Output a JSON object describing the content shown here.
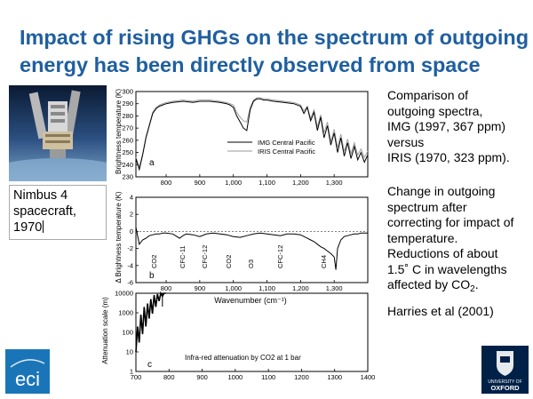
{
  "title": {
    "line1": "Impact of rising GHGs on the spectrum of outgoing",
    "line2": "energy has been directly observed from space"
  },
  "satellite_caption": {
    "line1": "Nimbus 4",
    "line2": "spacecraft,",
    "line3": "1970"
  },
  "comparison_text": {
    "line1": "Comparison of",
    "line2": "outgoing spectra,",
    "line3": "IMG (1997, 367 ppm)",
    "line4": "versus",
    "line5": "IRIS (1970, 323 ppm)."
  },
  "change_text": {
    "line1": "Change in outgoing",
    "line2": "spectrum after",
    "line3": "correcting for impact of",
    "line4": "temperature.",
    "line5": "Reductions of about",
    "line6": "1.5˚ C in wavelengths",
    "line7_prefix": "affected by CO",
    "line7_sub": "2",
    "line7_suffix": "."
  },
  "citation": "Harries et al (2001)",
  "logos": {
    "eci": "eci",
    "oxford_line1": "UNIVERSITY OF",
    "oxford_line2": "OXFORD"
  },
  "colors": {
    "title": "#1f5fa0",
    "eci_bg": "#1a75b8",
    "oxford_bg": "#002147"
  },
  "chart_data": [
    {
      "type": "line",
      "panel_label": "a",
      "ylabel": "Brightness temperature (K)",
      "xlim": [
        710,
        1400
      ],
      "ylim": [
        230,
        300
      ],
      "x_ticks": [
        "800",
        "900",
        "1,000",
        "1,100",
        "1,200",
        "1,300"
      ],
      "y_ticks": [
        "230",
        "240",
        "250",
        "260",
        "270",
        "280",
        "290",
        "300"
      ],
      "legend": [
        "IMG Central Pacific",
        "IRIS Central Pacific"
      ],
      "legend_position": "center-right",
      "series": [
        {
          "name": "IMG Central Pacific",
          "x": [
            710,
            720,
            730,
            740,
            750,
            760,
            770,
            780,
            790,
            800,
            820,
            850,
            880,
            900,
            930,
            960,
            980,
            990,
            1000,
            1010,
            1020,
            1030,
            1040,
            1050,
            1060,
            1070,
            1080,
            1090,
            1100,
            1120,
            1150,
            1180,
            1200,
            1210,
            1220,
            1230,
            1240,
            1250,
            1260,
            1270,
            1280,
            1290,
            1300,
            1310,
            1320,
            1330,
            1340,
            1350,
            1360,
            1370,
            1380,
            1390,
            1400
          ],
          "y": [
            245,
            236,
            248,
            262,
            272,
            282,
            286,
            288,
            289,
            290,
            291,
            292,
            291,
            292,
            292,
            291,
            290,
            289,
            287,
            280,
            275,
            270,
            268,
            285,
            292,
            294,
            294,
            293,
            293,
            292,
            291,
            290,
            288,
            282,
            287,
            276,
            283,
            268,
            279,
            262,
            272,
            256,
            266,
            250,
            262,
            247,
            258,
            245,
            255,
            244,
            250,
            242,
            248
          ]
        },
        {
          "name": "IRIS Central Pacific",
          "x": [
            710,
            720,
            730,
            740,
            750,
            760,
            770,
            780,
            790,
            800,
            820,
            850,
            880,
            900,
            930,
            960,
            980,
            990,
            1000,
            1010,
            1020,
            1030,
            1040,
            1050,
            1060,
            1070,
            1080,
            1090,
            1100,
            1120,
            1150,
            1180,
            1200,
            1210,
            1220,
            1230,
            1240,
            1250,
            1260,
            1270,
            1280,
            1290,
            1300,
            1310,
            1320,
            1330,
            1340,
            1350,
            1360,
            1370,
            1380,
            1390,
            1400
          ],
          "y": [
            246,
            238,
            249,
            263,
            273,
            283,
            287,
            289,
            290,
            291,
            292,
            293,
            292,
            293,
            293,
            292,
            291,
            290,
            289,
            283,
            279,
            276,
            275,
            287,
            293,
            295,
            295,
            294,
            294,
            293,
            292,
            291,
            289,
            284,
            288,
            278,
            285,
            271,
            281,
            266,
            275,
            259,
            269,
            254,
            265,
            251,
            261,
            249,
            258,
            248,
            253,
            246,
            251
          ]
        }
      ]
    },
    {
      "type": "line",
      "panel_label": "b",
      "ylabel": "Δ Brightness temperature (K)",
      "xlabel": "Wavenumber (cm⁻¹)",
      "xlim": [
        710,
        1400
      ],
      "ylim": [
        -6,
        4
      ],
      "x_ticks": [
        "800",
        "900",
        "1,000",
        "1,100",
        "1,200",
        "1,300"
      ],
      "y_ticks": [
        "4",
        "2",
        "0",
        "-2",
        "-4",
        "-6"
      ],
      "annotations": [
        "CO2",
        "CFC-11",
        "CFC-12",
        "CO2",
        "O3",
        "CFC-12",
        "CH4"
      ],
      "series": [
        {
          "name": "",
          "x": [
            710,
            720,
            730,
            740,
            750,
            760,
            770,
            780,
            790,
            800,
            820,
            840,
            850,
            860,
            880,
            900,
            920,
            940,
            960,
            980,
            1000,
            1020,
            1040,
            1060,
            1080,
            1100,
            1120,
            1140,
            1160,
            1180,
            1200,
            1220,
            1230,
            1240,
            1250,
            1260,
            1270,
            1280,
            1290,
            1300,
            1305,
            1310,
            1320,
            1330,
            1340,
            1350,
            1360,
            1370,
            1380,
            1390,
            1400
          ],
          "y": [
            0.5,
            -1.5,
            -1.0,
            -0.8,
            -0.5,
            -0.4,
            -0.3,
            -0.3,
            -0.2,
            -0.2,
            -0.3,
            -0.8,
            -0.5,
            -0.3,
            -0.4,
            -0.6,
            -0.3,
            -0.2,
            -0.3,
            -0.4,
            -0.6,
            -0.7,
            -0.5,
            -0.3,
            -0.2,
            -0.3,
            -0.4,
            -0.5,
            -0.3,
            -0.3,
            -0.4,
            -0.8,
            -1.0,
            -1.2,
            -1.5,
            -1.8,
            -2.0,
            -2.3,
            -2.6,
            -3.0,
            -4.5,
            -2.0,
            -1.0,
            -0.6,
            -0.5,
            -0.4,
            -0.3,
            -0.3,
            -0.2,
            -0.2,
            -0.2
          ]
        }
      ]
    },
    {
      "type": "line",
      "panel_label": "c",
      "ylabel": "Attenuation scale (m)",
      "xlim": [
        700,
        1400
      ],
      "ylim": [
        1,
        10000
      ],
      "y_scale": "log",
      "x_ticks": [
        "700",
        "800",
        "900",
        "1000",
        "1100",
        "1200",
        "1300",
        "1400"
      ],
      "y_ticks": [
        "10000",
        "1000",
        "100",
        "10",
        "1"
      ],
      "annotation": "Infra-red attenuation by CO2 at 1 bar",
      "series": [
        {
          "name": "",
          "x": [
            700,
            705,
            710,
            715,
            720,
            725,
            730,
            735,
            740,
            745,
            750,
            755,
            760,
            765,
            770,
            775,
            780,
            785,
            790
          ],
          "y": [
            10,
            200,
            30,
            800,
            80,
            2000,
            200,
            3000,
            500,
            5000,
            900,
            8000,
            2000,
            9000,
            4000,
            10000,
            7000,
            10000,
            10000
          ]
        }
      ]
    }
  ]
}
